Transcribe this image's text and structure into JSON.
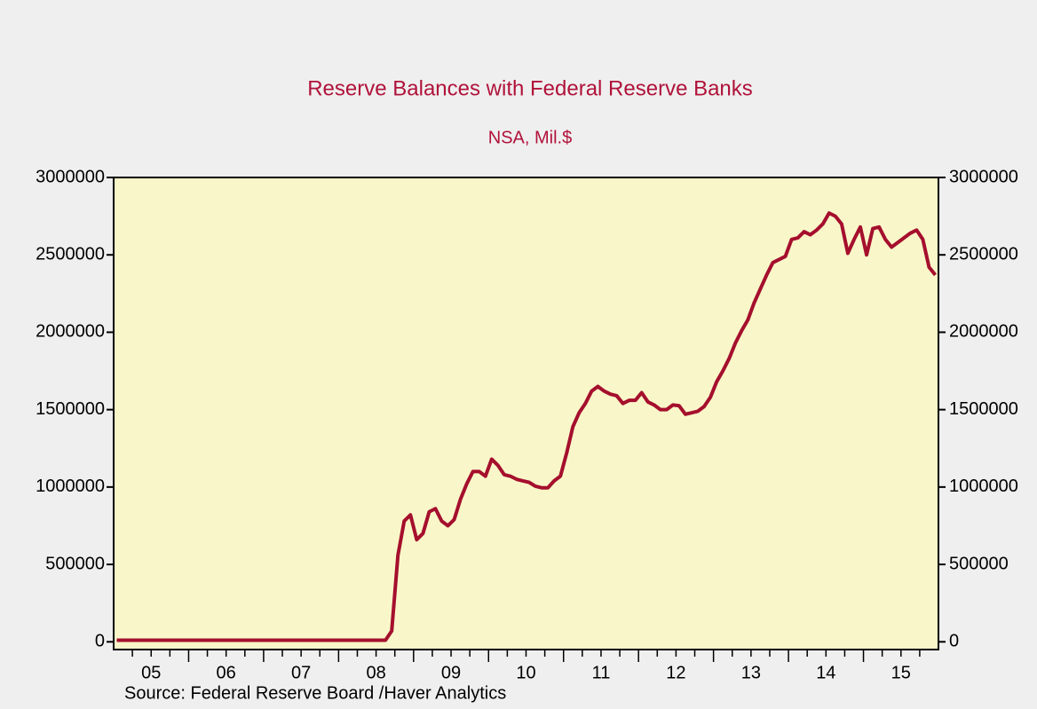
{
  "chart_data": {
    "type": "line",
    "title": "Reserve Balances with Federal Reserve Banks",
    "subtitle": "NSA, Mil.$",
    "source": "Source:  Federal Reserve Board /Haver Analytics",
    "color": "#a50f2d",
    "title_color": "#b0123a",
    "plot_background": "#f9f7c9",
    "ylim": [
      -50000,
      3000000
    ],
    "yticks": [
      0,
      500000,
      1000000,
      1500000,
      2000000,
      2500000,
      3000000
    ],
    "categories": [
      null,
      null,
      null,
      null,
      null,
      null,
      "05",
      null,
      null,
      null,
      null,
      null,
      null,
      null,
      null,
      null,
      null,
      null,
      "06",
      null,
      null,
      null,
      null,
      null,
      null,
      null,
      null,
      null,
      null,
      null,
      "07",
      null,
      null,
      null,
      null,
      null,
      null,
      null,
      null,
      null,
      null,
      null,
      "08",
      null,
      null,
      null,
      null,
      null,
      null,
      null,
      null,
      null,
      null,
      null,
      "09",
      null,
      null,
      null,
      null,
      null,
      null,
      null,
      null,
      null,
      null,
      null,
      "10",
      null,
      null,
      null,
      null,
      null,
      null,
      null,
      null,
      null,
      null,
      null,
      "11",
      null,
      null,
      null,
      null,
      null,
      null,
      null,
      null,
      null,
      null,
      null,
      "12",
      null,
      null,
      null,
      null,
      null,
      null,
      null,
      null,
      null,
      null,
      null,
      "13",
      null,
      null,
      null,
      null,
      null,
      null,
      null,
      null,
      null,
      null,
      null,
      "14",
      null,
      null,
      null,
      null,
      null,
      null,
      null,
      null,
      null,
      null,
      null,
      "15",
      null,
      null,
      null,
      null,
      null
    ],
    "values": [
      10000,
      10000,
      10000,
      10000,
      10000,
      10000,
      10000,
      10000,
      10000,
      10000,
      10000,
      10000,
      10000,
      10000,
      10000,
      10000,
      10000,
      10000,
      10000,
      10000,
      10000,
      10000,
      10000,
      10000,
      10000,
      10000,
      10000,
      10000,
      10000,
      10000,
      10000,
      10000,
      10000,
      10000,
      10000,
      10000,
      10000,
      10000,
      10000,
      10000,
      10000,
      10000,
      10000,
      10000,
      70000,
      560000,
      780000,
      820000,
      660000,
      700000,
      840000,
      860000,
      780000,
      750000,
      790000,
      920000,
      1020000,
      1100000,
      1100000,
      1070000,
      1180000,
      1140000,
      1080000,
      1070000,
      1050000,
      1040000,
      1030000,
      1005000,
      995000,
      995000,
      1040000,
      1070000,
      1220000,
      1390000,
      1480000,
      1540000,
      1620000,
      1650000,
      1620000,
      1600000,
      1590000,
      1540000,
      1560000,
      1560000,
      1610000,
      1550000,
      1530000,
      1500000,
      1500000,
      1530000,
      1525000,
      1470000,
      1480000,
      1490000,
      1520000,
      1580000,
      1680000,
      1750000,
      1830000,
      1930000,
      2010000,
      2080000,
      2190000,
      2280000,
      2370000,
      2450000,
      2470000,
      2490000,
      2600000,
      2610000,
      2650000,
      2630000,
      2660000,
      2700000,
      2770000,
      2750000,
      2700000,
      2510000,
      2600000,
      2680000,
      2500000,
      2670000,
      2680000,
      2600000,
      2550000,
      2580000,
      2610000,
      2640000,
      2660000,
      2600000,
      2420000,
      2370000
    ]
  }
}
